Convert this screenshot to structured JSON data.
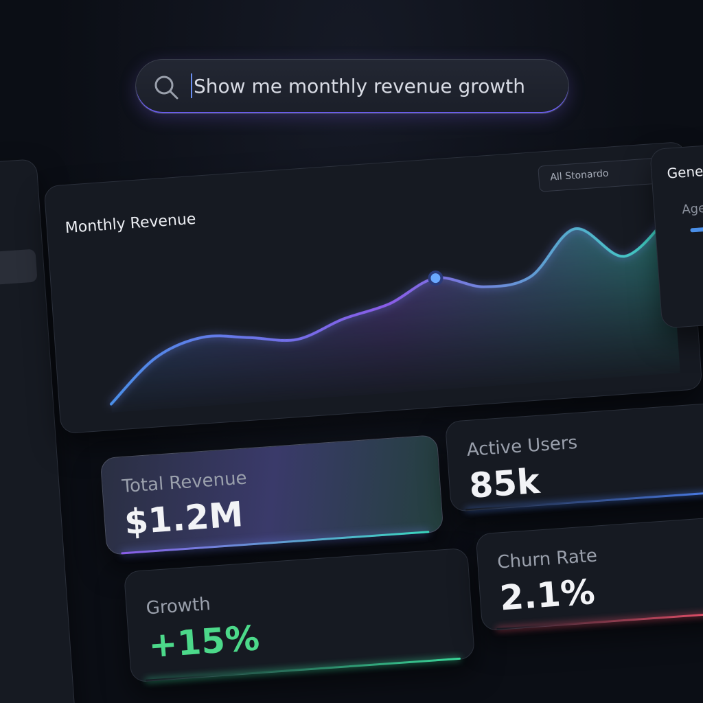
{
  "search": {
    "query": "Show me monthly revenue growth"
  },
  "chart_panel": {
    "dropdown": "All Stonardo",
    "chart_data": {
      "type": "area",
      "title": "Monthly Revenue",
      "values": [
        5,
        30,
        40,
        38,
        35,
        45,
        52,
        65,
        58,
        62,
        88,
        70,
        92
      ],
      "ylim": [
        0,
        100
      ],
      "colors": [
        "#4a8fe8",
        "#8a5ce8",
        "#3ad8c0"
      ]
    }
  },
  "side_panel": {
    "title": "Gene",
    "label": "Age"
  },
  "cards": [
    {
      "label": "Total Revenue",
      "value": "$1.2M"
    },
    {
      "label": "Active Users",
      "value": "85k"
    },
    {
      "label": "Growth",
      "value": "+15%"
    },
    {
      "label": "Churn Rate",
      "value": "2.1%"
    }
  ]
}
